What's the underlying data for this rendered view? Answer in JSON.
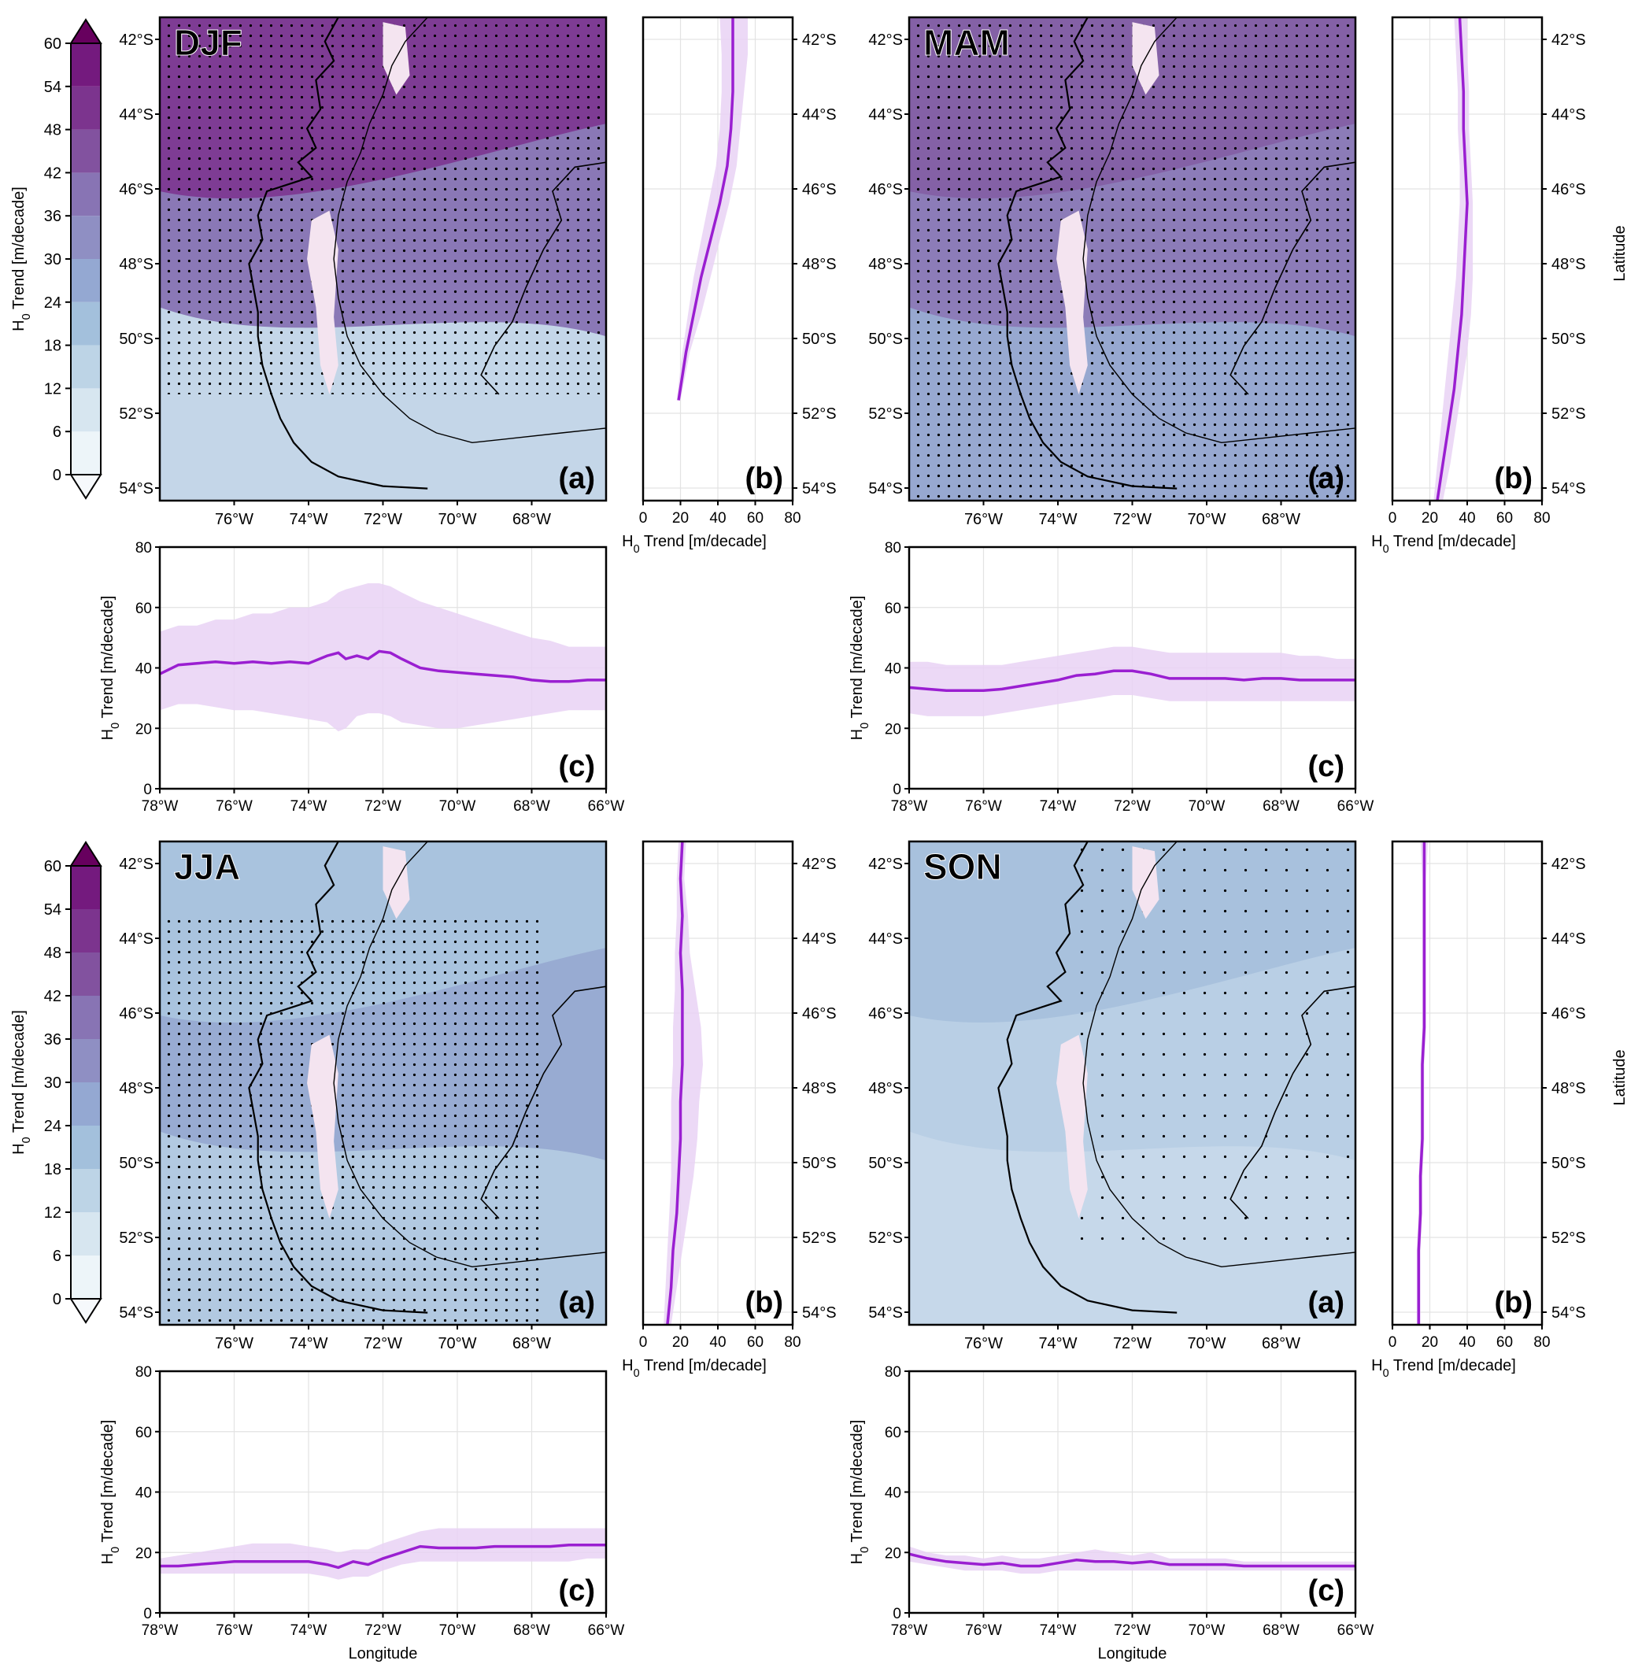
{
  "figure": {
    "units_label": "H0 Trend [m/decade]",
    "axis_unit_text": "Trend [m/decade]",
    "colorbar": {
      "ticks": [
        "0",
        "6",
        "12",
        "18",
        "24",
        "30",
        "36",
        "42",
        "48",
        "54",
        "60"
      ],
      "label_main": "H",
      "label_sub": "0",
      "label_rest": " Trend [m/decade]",
      "colors": [
        "#edf5f9",
        "#d7e6f0",
        "#bdd4e6",
        "#a3c0dc",
        "#94a8d2",
        "#8f8fc3",
        "#8874b4",
        "#82529f",
        "#7c348e",
        "#741a7e",
        "#67005e"
      ],
      "extend": "both"
    },
    "map_lon_ticks": [
      "76°W",
      "74°W",
      "72°W",
      "70°W",
      "68°W"
    ],
    "map_lat_ticks": [
      "42°S",
      "44°S",
      "46°S",
      "48°S",
      "50°S",
      "52°S",
      "54°S"
    ],
    "lon_ticks": [
      "78°W",
      "76°W",
      "74°W",
      "72°W",
      "70°W",
      "68°W",
      "66°W"
    ],
    "trend_ticks": [
      "0",
      "20",
      "40",
      "60",
      "80"
    ],
    "xlabel": "Longitude",
    "ylabel_lat": "Latitude",
    "panel_a": "(a)",
    "panel_b": "(b)",
    "panel_c": "(c)"
  },
  "chart_data": [
    {
      "season": "DJF",
      "type": "heatmap",
      "map_fill_north": "#7e3c94",
      "map_fill_mid": "#8a78b6",
      "map_fill_south": "#c4d6e8",
      "stippled": "most",
      "latitude_profile": {
        "type": "line",
        "x_label": "H0 Trend [m/decade]",
        "xlim": [
          0,
          80
        ],
        "lat": [
          -41.0,
          -42.0,
          -43.0,
          -44.0,
          -45.0,
          -46.0,
          -47.0,
          -48.0,
          -49.0,
          -50.0,
          -51.3
        ],
        "mean": [
          48,
          48,
          48,
          47,
          45,
          41,
          36,
          31,
          27,
          23,
          19
        ],
        "lower": [
          41,
          42,
          42,
          41,
          39,
          35,
          31,
          27,
          24,
          21,
          18
        ],
        "upper": [
          56,
          56,
          54,
          52,
          50,
          46,
          41,
          36,
          31,
          25,
          20
        ]
      },
      "longitude_profile": {
        "type": "line",
        "y_label": "H0 Trend [m/decade]",
        "ylim": [
          0,
          80
        ],
        "lon": [
          -78,
          -77.5,
          -77,
          -76.5,
          -76,
          -75.5,
          -75,
          -74.5,
          -74,
          -73.5,
          -73.2,
          -73,
          -72.7,
          -72.4,
          -72.1,
          -71.8,
          -71.5,
          -71,
          -70.5,
          -70,
          -69.5,
          -69,
          -68.5,
          -68,
          -67.5,
          -67,
          -66.5,
          -66
        ],
        "mean": [
          38,
          41,
          41.5,
          42,
          41.5,
          42,
          41.5,
          42,
          41.5,
          44,
          45,
          43,
          44,
          43,
          45.5,
          45,
          43,
          40,
          39,
          38.5,
          38,
          37.5,
          37,
          36,
          35.5,
          35.5,
          36,
          36
        ],
        "lower": [
          26,
          28,
          28,
          27,
          26,
          26,
          25,
          24,
          23,
          22,
          19,
          20,
          24,
          25,
          25,
          24,
          22,
          21,
          20,
          20,
          21,
          22,
          23,
          24,
          25,
          26,
          26,
          26
        ],
        "upper": [
          52,
          54,
          54,
          56,
          56,
          58,
          58,
          60,
          60,
          62,
          65,
          66,
          67,
          68,
          68,
          67,
          65,
          62,
          60,
          58,
          56,
          54,
          52,
          50,
          49,
          47,
          47,
          47
        ]
      }
    },
    {
      "season": "MAM",
      "type": "heatmap",
      "map_fill_north": "#8461a6",
      "map_fill_mid": "#8c7cb8",
      "map_fill_south": "#97a8d0",
      "stippled": "all",
      "latitude_profile": {
        "type": "line",
        "x_label": "H0 Trend [m/decade]",
        "xlim": [
          0,
          80
        ],
        "lat": [
          -41.0,
          -42.0,
          -43.0,
          -44.0,
          -45.0,
          -46.0,
          -47.0,
          -48.0,
          -49.0,
          -50.0,
          -51.0,
          -52.0,
          -53.0,
          -54.0
        ],
        "mean": [
          36,
          37,
          38,
          38,
          39,
          40,
          39,
          38,
          37,
          35,
          33,
          30,
          27,
          24
        ],
        "lower": [
          33,
          34,
          35,
          35,
          36,
          36,
          35,
          34,
          32,
          30,
          28,
          26,
          24,
          22
        ],
        "upper": [
          40,
          40,
          41,
          41,
          42,
          43,
          43,
          43,
          42,
          40,
          37,
          34,
          31,
          27
        ]
      },
      "longitude_profile": {
        "type": "line",
        "y_label": "H0 Trend [m/decade]",
        "ylim": [
          0,
          80
        ],
        "lon": [
          -78,
          -77.5,
          -77,
          -76.5,
          -76,
          -75.5,
          -75,
          -74.5,
          -74,
          -73.5,
          -73,
          -72.5,
          -72,
          -71.5,
          -71,
          -70.5,
          -70,
          -69.5,
          -69,
          -68.5,
          -68,
          -67.5,
          -67,
          -66.5,
          -66
        ],
        "mean": [
          33.5,
          33,
          32.5,
          32.5,
          32.5,
          33,
          34,
          35,
          36,
          37.5,
          38,
          39,
          39,
          38,
          36.5,
          36.5,
          36.5,
          36.5,
          36,
          36.5,
          36.5,
          36,
          36,
          36,
          36
        ],
        "lower": [
          25,
          24,
          24,
          24,
          24,
          25,
          26,
          27,
          28,
          29,
          30,
          31,
          31,
          30,
          29,
          29,
          29,
          29,
          29,
          29,
          29,
          29,
          29,
          29,
          29
        ],
        "upper": [
          42,
          42,
          41,
          41,
          41,
          41,
          42,
          43,
          44,
          45,
          46,
          47,
          47,
          46,
          45,
          45,
          45,
          45,
          45,
          45,
          45,
          44,
          44,
          43,
          43
        ]
      }
    },
    {
      "season": "JJA",
      "type": "heatmap",
      "map_fill_north": "#a9c3de",
      "map_fill_mid": "#98abd2",
      "map_fill_south": "#b2c9e1",
      "stippled": "western",
      "latitude_profile": {
        "type": "line",
        "x_label": "H0 Trend [m/decade]",
        "xlim": [
          0,
          80
        ],
        "lat": [
          -41.0,
          -42.0,
          -43.0,
          -44.0,
          -45.0,
          -46.0,
          -47.0,
          -48.0,
          -49.0,
          -50.0,
          -51.0,
          -52.0,
          -53.0,
          -54.0
        ],
        "mean": [
          21,
          20,
          21,
          20,
          21,
          21,
          21,
          20,
          20,
          19,
          18,
          16,
          15,
          13
        ],
        "lower": [
          19,
          18,
          18,
          17,
          17,
          16,
          16,
          15,
          15,
          15,
          14,
          13,
          12,
          11
        ],
        "upper": [
          23,
          22,
          24,
          25,
          28,
          31,
          32,
          30,
          29,
          27,
          24,
          21,
          18,
          15
        ]
      },
      "longitude_profile": {
        "type": "line",
        "y_label": "H0 Trend [m/decade]",
        "ylim": [
          0,
          80
        ],
        "lon": [
          -78,
          -77.5,
          -77,
          -76.5,
          -76,
          -75.5,
          -75,
          -74.5,
          -74,
          -73.5,
          -73.2,
          -72.8,
          -72.4,
          -72,
          -71.5,
          -71,
          -70.5,
          -70,
          -69.5,
          -69,
          -68.5,
          -68,
          -67.5,
          -67,
          -66.5,
          -66
        ],
        "mean": [
          15.5,
          15.5,
          16,
          16.5,
          17,
          17,
          17,
          17,
          17,
          16,
          15,
          17,
          16,
          18,
          20,
          22,
          21.5,
          21.5,
          21.5,
          22,
          22,
          22,
          22,
          22.5,
          22.5,
          22.5
        ],
        "lower": [
          13,
          13,
          13,
          13,
          13,
          13,
          13,
          13,
          13,
          12,
          11,
          12,
          12,
          14,
          16,
          17,
          17,
          17,
          17,
          17,
          17,
          17,
          17,
          17,
          18,
          18
        ],
        "upper": [
          18,
          19,
          20,
          21,
          22,
          23,
          23,
          23,
          22,
          21,
          20,
          21,
          21,
          23,
          25,
          27,
          28,
          28,
          28,
          28,
          28,
          28,
          28,
          28,
          28,
          28
        ]
      }
    },
    {
      "season": "SON",
      "type": "heatmap",
      "map_fill_north": "#a8c1dd",
      "map_fill_mid": "#b9cfe5",
      "map_fill_south": "#c6d8ea",
      "stippled": "sparse",
      "latitude_profile": {
        "type": "line",
        "x_label": "H0 Trend [m/decade]",
        "xlim": [
          0,
          80
        ],
        "lat": [
          -41.0,
          -42.0,
          -43.0,
          -44.0,
          -45.0,
          -46.0,
          -47.0,
          -48.0,
          -49.0,
          -50.0,
          -51.0,
          -52.0,
          -53.0,
          -54.0
        ],
        "mean": [
          17,
          17,
          17,
          17,
          17,
          17,
          16,
          16,
          16,
          15,
          15,
          14,
          14,
          14
        ],
        "lower": [
          15,
          16,
          16,
          16,
          16,
          16,
          15,
          15,
          15,
          14,
          14,
          13,
          13,
          13
        ],
        "upper": [
          19,
          18,
          18,
          18,
          18,
          18,
          17,
          17,
          17,
          16,
          16,
          15,
          15,
          15
        ]
      },
      "longitude_profile": {
        "type": "line",
        "y_label": "H0 Trend [m/decade]",
        "ylim": [
          0,
          80
        ],
        "lon": [
          -78,
          -77.5,
          -77,
          -76.5,
          -76,
          -75.5,
          -75,
          -74.5,
          -74,
          -73.5,
          -73,
          -72.5,
          -72,
          -71.5,
          -71,
          -70.5,
          -70,
          -69.5,
          -69,
          -68.5,
          -68,
          -67.5,
          -67,
          -66.5,
          -66
        ],
        "mean": [
          19.5,
          18,
          17,
          16.5,
          16,
          16.5,
          15.5,
          15.5,
          16.5,
          17.5,
          17,
          17,
          16.5,
          17,
          16,
          16,
          16,
          16,
          15.5,
          15.5,
          15.5,
          15.5,
          15.5,
          15.5,
          15.5
        ],
        "lower": [
          17,
          16,
          15,
          14,
          14,
          14,
          13,
          13,
          14,
          14,
          14,
          14,
          14,
          14,
          14,
          14,
          14,
          14,
          14,
          14,
          14,
          14,
          14,
          14,
          14
        ],
        "upper": [
          22,
          20,
          19,
          19,
          18,
          19,
          18,
          18,
          19,
          20,
          21,
          20,
          19,
          20,
          18,
          18,
          18,
          18,
          17,
          17,
          17,
          17,
          17,
          17,
          17
        ]
      }
    }
  ]
}
